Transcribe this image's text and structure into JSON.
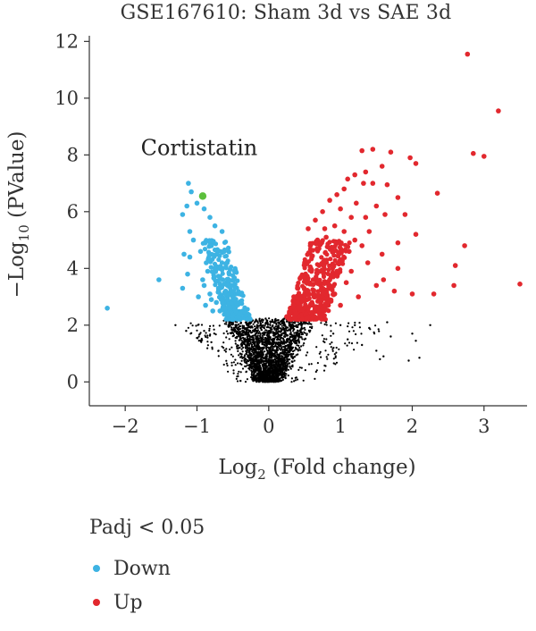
{
  "chart_data": {
    "type": "scatter",
    "title": "GSE167610: Sham 3d vs SAE 3d",
    "xlabel": {
      "prefix": "Log",
      "sub": "2",
      "suffix": " (Fold change)"
    },
    "ylabel": {
      "prefix": "−Log",
      "sub": "10",
      "suffix": " (PValue)"
    },
    "xlim": [
      -2.5,
      3.6
    ],
    "ylim": [
      -0.4,
      12.2
    ],
    "xticks": [
      -2,
      -1,
      0,
      1,
      2,
      3
    ],
    "yticks": [
      0,
      2,
      4,
      6,
      8,
      10,
      12
    ],
    "grid": false,
    "annotation": {
      "text": "Cortistatin",
      "x": -0.92,
      "y": 6.6
    },
    "legend": {
      "title": "Padj < 0.05",
      "placement": "bottom-left",
      "entries": [
        {
          "label": "Down",
          "color": "#3db3e3"
        },
        {
          "label": "Up",
          "color": "#e2282e"
        }
      ]
    },
    "colors": {
      "down": "#3db3e3",
      "up": "#e2282e",
      "ns": "#000000",
      "highlight": "#5cbf3c"
    },
    "highlight": [
      {
        "label": "Cortistatin",
        "x": -0.92,
        "y": 6.55
      }
    ],
    "series": [
      {
        "name": "Down",
        "color": "#3db3e3",
        "points": [
          [
            -2.25,
            2.6
          ],
          [
            -1.53,
            3.6
          ],
          [
            -1.12,
            7.0
          ],
          [
            -1.08,
            6.7
          ],
          [
            -1.14,
            6.2
          ],
          [
            -1.2,
            5.9
          ],
          [
            -1.0,
            6.3
          ],
          [
            -0.9,
            6.1
          ],
          [
            -0.82,
            5.8
          ],
          [
            -1.1,
            5.3
          ],
          [
            -0.75,
            5.5
          ],
          [
            -0.65,
            5.3
          ],
          [
            -1.18,
            4.5
          ],
          [
            -1.1,
            4.4
          ],
          [
            -1.13,
            3.8
          ],
          [
            -1.2,
            3.3
          ],
          [
            -0.98,
            3.0
          ],
          [
            -0.88,
            2.7
          ],
          [
            -1.05,
            5.0
          ],
          [
            -0.95,
            4.6
          ],
          [
            -0.87,
            4.2
          ],
          [
            -0.8,
            4.8
          ],
          [
            -0.72,
            4.5
          ],
          [
            -0.68,
            4.0
          ],
          [
            -0.62,
            4.6
          ],
          [
            -0.58,
            4.2
          ],
          [
            -0.55,
            3.8
          ],
          [
            -0.52,
            3.4
          ],
          [
            -0.5,
            3.0
          ],
          [
            -0.47,
            2.6
          ],
          [
            -0.44,
            2.3
          ],
          [
            -0.9,
            3.4
          ],
          [
            -0.82,
            3.1
          ],
          [
            -0.76,
            3.7
          ],
          [
            -0.7,
            3.3
          ],
          [
            -0.66,
            2.9
          ],
          [
            -0.6,
            2.6
          ],
          [
            -0.56,
            2.4
          ],
          [
            -0.52,
            2.8
          ],
          [
            -0.5,
            2.2
          ],
          [
            -0.78,
            2.5
          ],
          [
            -0.85,
            3.9
          ],
          [
            -0.92,
            3.6
          ],
          [
            -0.64,
            3.6
          ],
          [
            -0.6,
            3.2
          ],
          [
            -0.57,
            2.9
          ],
          [
            -0.54,
            2.6
          ],
          [
            -0.48,
            2.9
          ],
          [
            -0.46,
            2.5
          ],
          [
            -0.42,
            2.3
          ],
          [
            -0.4,
            2.4
          ],
          [
            -0.73,
            2.8
          ],
          [
            -0.68,
            2.5
          ],
          [
            -0.8,
            2.9
          ]
        ]
      },
      {
        "name": "Up",
        "color": "#e2282e",
        "points": [
          [
            2.77,
            11.55
          ],
          [
            3.2,
            9.55
          ],
          [
            2.85,
            8.05
          ],
          [
            3.0,
            7.95
          ],
          [
            2.35,
            6.65
          ],
          [
            3.5,
            3.45
          ],
          [
            2.73,
            4.8
          ],
          [
            2.6,
            4.1
          ],
          [
            2.58,
            3.4
          ],
          [
            2.3,
            3.1
          ],
          [
            1.45,
            8.2
          ],
          [
            1.3,
            8.15
          ],
          [
            1.7,
            8.1
          ],
          [
            1.97,
            7.9
          ],
          [
            2.05,
            7.7
          ],
          [
            1.58,
            7.6
          ],
          [
            1.35,
            7.4
          ],
          [
            1.2,
            7.3
          ],
          [
            1.1,
            7.15
          ],
          [
            1.32,
            7.0
          ],
          [
            1.45,
            7.0
          ],
          [
            1.65,
            6.95
          ],
          [
            1.8,
            6.5
          ],
          [
            1.05,
            6.8
          ],
          [
            0.95,
            6.6
          ],
          [
            1.22,
            6.3
          ],
          [
            1.5,
            6.2
          ],
          [
            1.35,
            5.8
          ],
          [
            1.62,
            5.9
          ],
          [
            1.9,
            5.9
          ],
          [
            2.05,
            5.2
          ],
          [
            1.8,
            4.9
          ],
          [
            1.58,
            4.5
          ],
          [
            1.38,
            4.2
          ],
          [
            1.5,
            3.4
          ],
          [
            1.75,
            3.2
          ],
          [
            1.8,
            4.0
          ],
          [
            2.0,
            3.1
          ],
          [
            1.6,
            3.6
          ],
          [
            1.25,
            3.0
          ],
          [
            0.85,
            6.4
          ],
          [
            0.75,
            6.0
          ],
          [
            0.65,
            5.7
          ],
          [
            0.55,
            5.4
          ],
          [
            0.92,
            5.5
          ],
          [
            1.05,
            5.3
          ],
          [
            0.8,
            5.1
          ],
          [
            0.7,
            4.7
          ],
          [
            0.6,
            4.4
          ],
          [
            0.5,
            4.1
          ],
          [
            0.45,
            3.7
          ],
          [
            0.4,
            3.3
          ],
          [
            0.35,
            3.0
          ],
          [
            0.3,
            2.6
          ],
          [
            0.25,
            2.3
          ],
          [
            0.9,
            4.6
          ],
          [
            1.0,
            4.3
          ],
          [
            1.12,
            4.6
          ],
          [
            1.2,
            5.0
          ],
          [
            0.95,
            3.9
          ],
          [
            0.85,
            3.6
          ],
          [
            0.75,
            3.3
          ],
          [
            0.65,
            3.0
          ],
          [
            0.58,
            2.7
          ],
          [
            0.52,
            2.4
          ],
          [
            1.08,
            3.5
          ],
          [
            1.15,
            3.9
          ],
          [
            0.72,
            3.9
          ],
          [
            0.62,
            3.6
          ],
          [
            0.55,
            3.2
          ],
          [
            0.48,
            2.9
          ],
          [
            0.42,
            2.6
          ],
          [
            0.38,
            2.4
          ],
          [
            0.82,
            2.8
          ],
          [
            0.92,
            3.1
          ],
          [
            1.0,
            2.7
          ],
          [
            0.7,
            2.5
          ],
          [
            1.3,
            4.8
          ],
          [
            1.4,
            5.3
          ],
          [
            1.15,
            5.8
          ],
          [
            1.0,
            6.1
          ],
          [
            0.78,
            5.4
          ],
          [
            0.68,
            5.0
          ],
          [
            0.58,
            4.8
          ]
        ]
      },
      {
        "name": "Not significant",
        "color": "#000000",
        "points": [
          [
            -1.3,
            2.0
          ],
          [
            -1.15,
            1.8
          ],
          [
            -1.0,
            1.55
          ],
          [
            -0.9,
            1.8
          ],
          [
            -0.8,
            1.4
          ],
          [
            -0.7,
            1.1
          ],
          [
            0.6,
            1.9
          ],
          [
            0.9,
            1.7
          ],
          [
            1.1,
            1.5
          ],
          [
            1.3,
            1.3
          ],
          [
            1.5,
            1.1
          ],
          [
            1.6,
            0.9
          ],
          [
            1.7,
            1.6
          ],
          [
            1.4,
            1.9
          ],
          [
            2.0,
            1.7
          ],
          [
            2.05,
            1.45
          ],
          [
            1.95,
            0.75
          ],
          [
            2.1,
            0.85
          ],
          [
            1.55,
            0.8
          ],
          [
            1.65,
            2.1
          ],
          [
            1.2,
            2.0
          ],
          [
            2.25,
            2.0
          ],
          [
            0.8,
            2.1
          ],
          [
            1.0,
            2.0
          ]
        ]
      }
    ]
  }
}
